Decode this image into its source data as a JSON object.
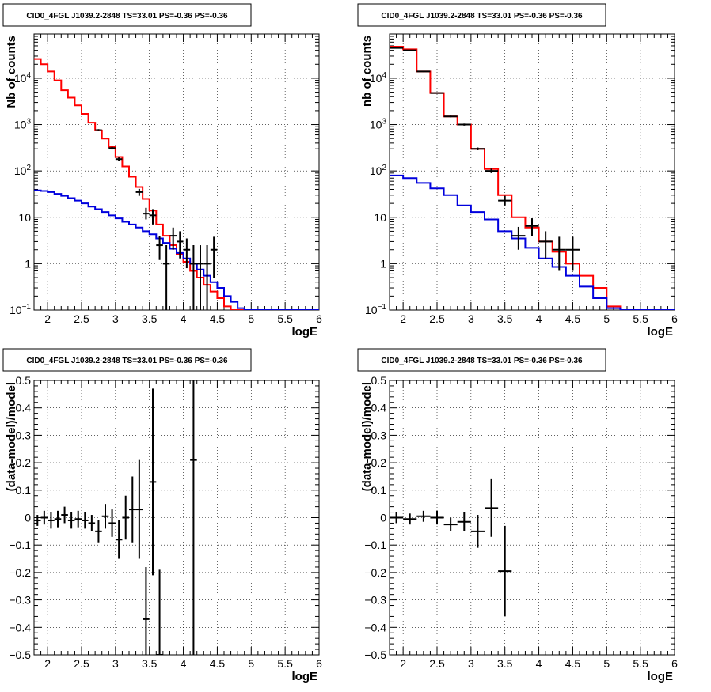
{
  "chart_data": [
    {
      "type": "line",
      "title": "CID0_4FGL J1039.2-2848 TS=33.01 PS=-0.36 PS=-0.36",
      "xlabel": "logE",
      "ylabel": "Nb of counts",
      "xlim": [
        1.8,
        6.0
      ],
      "ylim": [
        0.1,
        90000
      ],
      "yscale": "log",
      "grid": true,
      "xticks": [
        "2",
        "2.5",
        "3",
        "3.5",
        "4",
        "4.5",
        "5",
        "5.5",
        "6"
      ],
      "yticks": [
        {
          "v": 0.1,
          "label": "10",
          "sup": "−1"
        },
        {
          "v": 1,
          "label": "1",
          "sup": ""
        },
        {
          "v": 10,
          "label": "10",
          "sup": ""
        },
        {
          "v": 100,
          "label": "10",
          "sup": "2"
        },
        {
          "v": 1000,
          "label": "10",
          "sup": "3"
        },
        {
          "v": 10000,
          "label": "10",
          "sup": "4"
        }
      ],
      "step_series": [
        {
          "name": "",
          "color": "#ff0000",
          "edges": [
            1.8,
            1.9,
            2.0,
            2.1,
            2.2,
            2.3,
            2.4,
            2.5,
            2.6,
            2.7,
            2.8,
            2.9,
            3.0,
            3.1,
            3.2,
            3.3,
            3.4,
            3.5,
            3.6,
            3.7,
            3.8,
            3.9,
            4.0,
            4.1,
            4.2,
            4.3,
            4.4,
            4.5,
            4.6,
            4.7,
            4.8,
            4.9,
            5.0,
            5.1,
            5.2,
            5.3,
            5.4,
            5.5,
            5.6,
            5.7,
            5.8,
            5.9,
            6.0
          ],
          "values": [
            26000,
            20000,
            14000,
            9000,
            5500,
            3800,
            2600,
            1700,
            1100,
            750,
            500,
            330,
            200,
            125,
            75,
            45,
            25,
            14,
            7,
            4,
            2.5,
            1.6,
            1.1,
            0.7,
            0.5,
            0.35,
            0.25,
            0.18,
            0.12,
            0.1,
            0.1,
            0.1,
            0.1,
            0.1,
            0.1,
            0.1,
            0.1,
            0.1,
            0.1,
            0.1,
            0.1,
            0.1
          ]
        },
        {
          "name": "",
          "color": "#0000dd",
          "edges": [
            1.8,
            1.9,
            2.0,
            2.1,
            2.2,
            2.3,
            2.4,
            2.5,
            2.6,
            2.7,
            2.8,
            2.9,
            3.0,
            3.1,
            3.2,
            3.3,
            3.4,
            3.5,
            3.6,
            3.7,
            3.8,
            3.9,
            4.0,
            4.1,
            4.2,
            4.3,
            4.4,
            4.5,
            4.6,
            4.7,
            4.8,
            4.9,
            5.0,
            5.1,
            5.2,
            5.3,
            5.4,
            5.5,
            5.6,
            5.7,
            5.8,
            5.9,
            6.0
          ],
          "values": [
            38,
            37,
            35,
            32,
            29,
            26,
            23,
            20,
            17,
            15,
            13,
            11,
            9.5,
            8,
            7,
            6,
            5,
            4.3,
            3.5,
            2.8,
            2.1,
            1.7,
            1.3,
            1.0,
            0.75,
            0.55,
            0.4,
            0.3,
            0.2,
            0.15,
            0.11,
            0.1,
            0.1,
            0.1,
            0.1,
            0.1,
            0.1,
            0.1,
            0.1,
            0.1,
            0.1,
            0.1
          ]
        }
      ],
      "points": [
        {
          "x": 2.75,
          "y": 760,
          "xerr": 0.05,
          "ylo": 720,
          "yhi": 800
        },
        {
          "x": 2.95,
          "y": 310,
          "xerr": 0.05,
          "ylo": 290,
          "yhi": 330
        },
        {
          "x": 3.05,
          "y": 180,
          "xerr": 0.05,
          "ylo": 165,
          "yhi": 195
        },
        {
          "x": 3.35,
          "y": 35,
          "xerr": 0.05,
          "ylo": 29,
          "yhi": 41
        },
        {
          "x": 3.45,
          "y": 12,
          "xerr": 0.05,
          "ylo": 9,
          "yhi": 16
        },
        {
          "x": 3.55,
          "y": 11,
          "xerr": 0.05,
          "ylo": 7,
          "yhi": 15
        },
        {
          "x": 3.65,
          "y": 2.5,
          "xerr": 0.05,
          "ylo": 1.2,
          "yhi": 4
        },
        {
          "x": 3.75,
          "y": 1.0,
          "xerr": 0.05,
          "ylo": 0.1,
          "yhi": 2.5
        },
        {
          "x": 3.85,
          "y": 4.0,
          "xerr": 0.05,
          "ylo": 2,
          "yhi": 6
        },
        {
          "x": 3.95,
          "y": 3.0,
          "xerr": 0.05,
          "ylo": 1.3,
          "yhi": 5
        },
        {
          "x": 4.05,
          "y": 2.0,
          "xerr": 0.05,
          "ylo": 0.8,
          "yhi": 3.5
        },
        {
          "x": 4.15,
          "y": 1.0,
          "xerr": 0.05,
          "ylo": 0.1,
          "yhi": 2.5
        },
        {
          "x": 4.25,
          "y": 1.0,
          "xerr": 0.05,
          "ylo": 0.1,
          "yhi": 2.5
        },
        {
          "x": 4.35,
          "y": 1.0,
          "xerr": 0.05,
          "ylo": 0.1,
          "yhi": 2.5
        },
        {
          "x": 4.45,
          "y": 2.0,
          "xerr": 0.05,
          "ylo": 0.5,
          "yhi": 3.8
        }
      ]
    },
    {
      "type": "line",
      "title": "CID0_4FGL J1039.2-2848 TS=33.01 PS=-0.36 PS=-0.36",
      "xlabel": "logE",
      "ylabel": "nb of counts",
      "xlim": [
        1.8,
        6.0
      ],
      "ylim": [
        0.1,
        90000
      ],
      "yscale": "log",
      "grid": true,
      "xticks": [
        "2",
        "2.5",
        "3",
        "3.5",
        "4",
        "4.5",
        "5",
        "5.5",
        "6"
      ],
      "yticks": [
        {
          "v": 0.1,
          "label": "10",
          "sup": "−1"
        },
        {
          "v": 1,
          "label": "1",
          "sup": ""
        },
        {
          "v": 10,
          "label": "10",
          "sup": ""
        },
        {
          "v": 100,
          "label": "10",
          "sup": "2"
        },
        {
          "v": 1000,
          "label": "10",
          "sup": "3"
        },
        {
          "v": 10000,
          "label": "10",
          "sup": "4"
        }
      ],
      "step_series": [
        {
          "name": "",
          "color": "#ff0000",
          "edges": [
            1.8,
            2.0,
            2.2,
            2.4,
            2.6,
            2.8,
            3.0,
            3.2,
            3.4,
            3.6,
            3.8,
            4.0,
            4.2,
            4.4,
            4.6,
            4.8,
            5.0,
            5.2,
            5.4,
            5.6,
            5.8,
            6.0
          ],
          "values": [
            48000,
            42000,
            14000,
            4800,
            1500,
            1000,
            300,
            110,
            30,
            10,
            6,
            3,
            1.8,
            1.0,
            0.55,
            0.3,
            0.12,
            0.1,
            0.1,
            0.1,
            0.1
          ]
        },
        {
          "name": "",
          "color": "#0000dd",
          "edges": [
            1.8,
            2.0,
            2.2,
            2.4,
            2.6,
            2.8,
            3.0,
            3.2,
            3.4,
            3.6,
            3.8,
            4.0,
            4.2,
            4.4,
            4.6,
            4.8,
            5.0,
            5.2,
            5.4,
            5.6,
            5.8,
            6.0
          ],
          "values": [
            80,
            70,
            55,
            42,
            30,
            18,
            13,
            9,
            5,
            3.5,
            2.2,
            1.3,
            0.85,
            0.55,
            0.32,
            0.18,
            0.11,
            0.1,
            0.1,
            0.1,
            0.1
          ]
        }
      ],
      "points": [
        {
          "x": 1.9,
          "y": 45000,
          "xerr": 0.1,
          "ylo": 44000,
          "yhi": 46000
        },
        {
          "x": 2.1,
          "y": 40000,
          "xerr": 0.1,
          "ylo": 39000,
          "yhi": 41000
        },
        {
          "x": 2.3,
          "y": 14000,
          "xerr": 0.1,
          "ylo": 13600,
          "yhi": 14400
        },
        {
          "x": 2.5,
          "y": 4800,
          "xerr": 0.1,
          "ylo": 4650,
          "yhi": 4950
        },
        {
          "x": 2.7,
          "y": 1500,
          "xerr": 0.1,
          "ylo": 1440,
          "yhi": 1560
        },
        {
          "x": 2.9,
          "y": 1000,
          "xerr": 0.1,
          "ylo": 950,
          "yhi": 1050
        },
        {
          "x": 3.1,
          "y": 300,
          "xerr": 0.1,
          "ylo": 280,
          "yhi": 320
        },
        {
          "x": 3.3,
          "y": 100,
          "xerr": 0.1,
          "ylo": 90,
          "yhi": 112
        },
        {
          "x": 3.5,
          "y": 23,
          "xerr": 0.1,
          "ylo": 18,
          "yhi": 29
        },
        {
          "x": 3.7,
          "y": 4.0,
          "xerr": 0.1,
          "ylo": 2,
          "yhi": 6.2
        },
        {
          "x": 3.9,
          "y": 6.5,
          "xerr": 0.1,
          "ylo": 4,
          "yhi": 9.5
        },
        {
          "x": 4.1,
          "y": 3.0,
          "xerr": 0.1,
          "ylo": 1.3,
          "yhi": 5
        },
        {
          "x": 4.3,
          "y": 2.0,
          "xerr": 0.1,
          "ylo": 0.7,
          "yhi": 3.8
        },
        {
          "x": 4.5,
          "y": 2.0,
          "xerr": 0.1,
          "ylo": 0.7,
          "yhi": 3.8
        }
      ]
    },
    {
      "type": "scatter",
      "title": "CID0_4FGL J1039.2-2848 TS=33.01 PS=-0.36 PS=-0.36",
      "xlabel": "logE",
      "ylabel": "(data-model)/model",
      "xlim": [
        1.8,
        6.0
      ],
      "ylim": [
        -0.5,
        0.5
      ],
      "yscale": "linear",
      "grid": true,
      "xticks": [
        "2",
        "2.5",
        "3",
        "3.5",
        "4",
        "4.5",
        "5",
        "5.5",
        "6"
      ],
      "yticks_linear": [
        "−0.5",
        "−0.4",
        "−0.3",
        "−0.2",
        "−0.1",
        "0",
        "0.1",
        "0.2",
        "0.3",
        "0.4",
        "0.5"
      ],
      "points": [
        {
          "x": 1.85,
          "y": -0.01,
          "xerr": 0.05,
          "ylo": -0.03,
          "yhi": 0.01
        },
        {
          "x": 1.95,
          "y": 0.0,
          "xerr": 0.05,
          "ylo": -0.025,
          "yhi": 0.025
        },
        {
          "x": 2.05,
          "y": -0.01,
          "xerr": 0.05,
          "ylo": -0.04,
          "yhi": 0.02
        },
        {
          "x": 2.15,
          "y": -0.005,
          "xerr": 0.05,
          "ylo": -0.035,
          "yhi": 0.025
        },
        {
          "x": 2.25,
          "y": 0.01,
          "xerr": 0.05,
          "ylo": -0.02,
          "yhi": 0.04
        },
        {
          "x": 2.35,
          "y": -0.01,
          "xerr": 0.05,
          "ylo": -0.04,
          "yhi": 0.02
        },
        {
          "x": 2.45,
          "y": -0.005,
          "xerr": 0.05,
          "ylo": -0.035,
          "yhi": 0.025
        },
        {
          "x": 2.55,
          "y": -0.01,
          "xerr": 0.05,
          "ylo": -0.04,
          "yhi": 0.02
        },
        {
          "x": 2.65,
          "y": -0.02,
          "xerr": 0.05,
          "ylo": -0.05,
          "yhi": 0.01
        },
        {
          "x": 2.75,
          "y": -0.05,
          "xerr": 0.05,
          "ylo": -0.09,
          "yhi": -0.01
        },
        {
          "x": 2.85,
          "y": 0.005,
          "xerr": 0.05,
          "ylo": -0.04,
          "yhi": 0.05
        },
        {
          "x": 2.95,
          "y": -0.02,
          "xerr": 0.05,
          "ylo": -0.07,
          "yhi": 0.03
        },
        {
          "x": 3.05,
          "y": -0.08,
          "xerr": 0.05,
          "ylo": -0.15,
          "yhi": -0.01
        },
        {
          "x": 3.15,
          "y": 0.0,
          "xerr": 0.05,
          "ylo": -0.08,
          "yhi": 0.08
        },
        {
          "x": 3.25,
          "y": 0.03,
          "xerr": 0.05,
          "ylo": -0.09,
          "yhi": 0.15
        },
        {
          "x": 3.35,
          "y": 0.03,
          "xerr": 0.05,
          "ylo": -0.15,
          "yhi": 0.21
        },
        {
          "x": 3.45,
          "y": -0.37,
          "xerr": 0.05,
          "ylo": -0.5,
          "yhi": -0.18
        },
        {
          "x": 3.55,
          "y": 0.13,
          "xerr": 0.05,
          "ylo": -0.21,
          "yhi": 0.47
        },
        {
          "x": 3.65,
          "y": -0.5,
          "xerr": 0.05,
          "ylo": -0.5,
          "yhi": -0.19
        },
        {
          "x": 4.15,
          "y": 0.21,
          "xerr": 0.05,
          "ylo": -0.5,
          "yhi": 0.5
        }
      ]
    },
    {
      "type": "scatter",
      "title": "CID0_4FGL J1039.2-2848 TS=33.01 PS=-0.36 PS=-0.36",
      "xlabel": "logE",
      "ylabel": "(data-model)/model",
      "xlim": [
        1.8,
        6.0
      ],
      "ylim": [
        -0.5,
        0.5
      ],
      "yscale": "linear",
      "grid": true,
      "xticks": [
        "2",
        "2.5",
        "3",
        "3.5",
        "4",
        "4.5",
        "5",
        "5.5",
        "6"
      ],
      "yticks_linear": [
        "−0.5",
        "−0.4",
        "−0.3",
        "−0.2",
        "−0.1",
        "0",
        "0.1",
        "0.2",
        "0.3",
        "0.4",
        "0.5"
      ],
      "points": [
        {
          "x": 1.9,
          "y": 0.0,
          "xerr": 0.1,
          "ylo": -0.02,
          "yhi": 0.02
        },
        {
          "x": 2.1,
          "y": -0.005,
          "xerr": 0.1,
          "ylo": -0.025,
          "yhi": 0.015
        },
        {
          "x": 2.3,
          "y": 0.005,
          "xerr": 0.1,
          "ylo": -0.015,
          "yhi": 0.025
        },
        {
          "x": 2.5,
          "y": 0.0,
          "xerr": 0.1,
          "ylo": -0.025,
          "yhi": 0.025
        },
        {
          "x": 2.7,
          "y": -0.025,
          "xerr": 0.1,
          "ylo": -0.05,
          "yhi": 0.0
        },
        {
          "x": 2.9,
          "y": -0.015,
          "xerr": 0.1,
          "ylo": -0.05,
          "yhi": 0.02
        },
        {
          "x": 3.1,
          "y": -0.05,
          "xerr": 0.1,
          "ylo": -0.11,
          "yhi": 0.01
        },
        {
          "x": 3.3,
          "y": 0.035,
          "xerr": 0.1,
          "ylo": -0.07,
          "yhi": 0.14
        },
        {
          "x": 3.5,
          "y": -0.195,
          "xerr": 0.1,
          "ylo": -0.36,
          "yhi": -0.03
        }
      ]
    }
  ]
}
